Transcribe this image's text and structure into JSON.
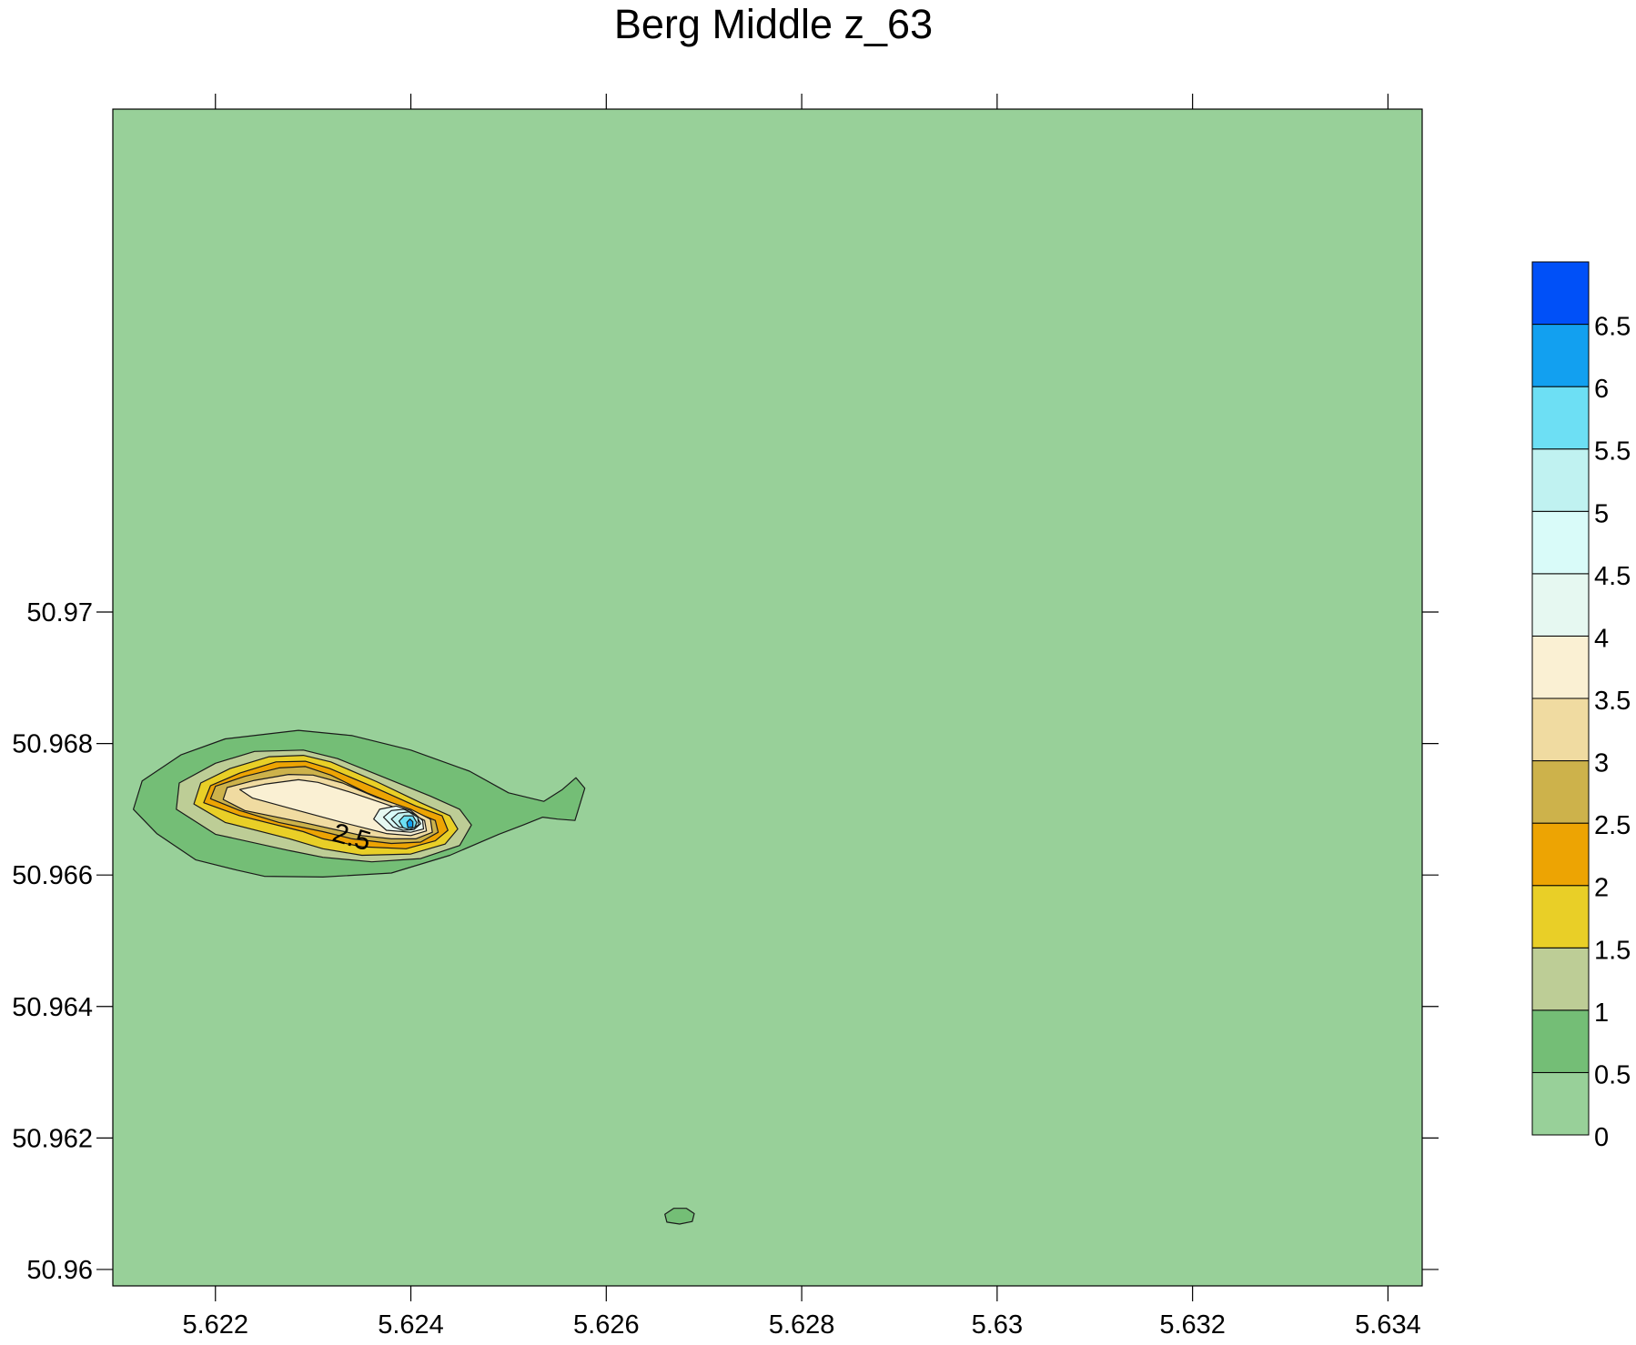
{
  "chart_data": {
    "type": "contour",
    "title": "Berg Middle z_63",
    "xlabel": "",
    "ylabel": "",
    "xlim": [
      5.62095,
      5.63435
    ],
    "ylim": [
      50.95975,
      50.97765
    ],
    "x_ticks": [
      5.622,
      5.624,
      5.626,
      5.628,
      5.63,
      5.632,
      5.634
    ],
    "x_tick_labels": [
      "5.622",
      "5.624",
      "5.626",
      "5.628",
      "5.63",
      "5.632",
      "5.634"
    ],
    "y_ticks": [
      50.96,
      50.962,
      50.964,
      50.966,
      50.968,
      50.97
    ],
    "y_tick_labels": [
      "50.96",
      "50.962",
      "50.964",
      "50.966",
      "50.968",
      "50.97"
    ],
    "grid": false,
    "background_level_color": "#98d099",
    "contour_label": {
      "text": "2.5",
      "x": 5.62339,
      "y": 50.96655
    },
    "levels": [
      0,
      0.5,
      1,
      1.5,
      2,
      2.5,
      3,
      3.5,
      4,
      4.5,
      5,
      5.5,
      6,
      6.5,
      7
    ],
    "colorbar": {
      "placement": "right",
      "labels": [
        "0",
        "0.5",
        "1",
        "1.5",
        "2",
        "2.5",
        "3",
        "3.5",
        "4",
        "4.5",
        "5",
        "5.5",
        "6",
        "6.5"
      ],
      "colors": [
        "#98d099",
        "#74be76",
        "#bdcd96",
        "#e9cf27",
        "#eda403",
        "#cdb24b",
        "#f0dba1",
        "#faf0d3",
        "#e6f8f1",
        "#d9fbf9",
        "#c0f2f1",
        "#6ddff4",
        "#12a0f0",
        "#0050f8"
      ]
    },
    "regions": [
      {
        "level": [
          0.5,
          1
        ],
        "color": "#74be76",
        "polygon": [
          [
            5.62223,
            50.96607
          ],
          [
            5.6218,
            50.96623
          ],
          [
            5.6214,
            50.96663
          ],
          [
            5.62116,
            50.967
          ],
          [
            5.62125,
            50.96743
          ],
          [
            5.62165,
            50.96783
          ],
          [
            5.6221,
            50.96807
          ],
          [
            5.62285,
            50.9682
          ],
          [
            5.6234,
            50.96812
          ],
          [
            5.624,
            50.9679
          ],
          [
            5.6246,
            50.96758
          ],
          [
            5.625,
            50.96725
          ],
          [
            5.62536,
            50.96712
          ],
          [
            5.62555,
            50.9673
          ],
          [
            5.62569,
            50.96748
          ],
          [
            5.62578,
            50.96732
          ],
          [
            5.62568,
            50.96683
          ],
          [
            5.6255,
            50.96685
          ],
          [
            5.62535,
            50.96688
          ],
          [
            5.62515,
            50.96676
          ],
          [
            5.6249,
            50.96662
          ],
          [
            5.6244,
            50.9663
          ],
          [
            5.6238,
            50.96603
          ],
          [
            5.6231,
            50.96597
          ],
          [
            5.6225,
            50.96598
          ]
        ]
      },
      {
        "level": [
          1,
          1.5
        ],
        "color": "#bdcd96",
        "polygon": [
          [
            5.62276,
            50.96637
          ],
          [
            5.622,
            50.96662
          ],
          [
            5.6216,
            50.967
          ],
          [
            5.62163,
            50.9674
          ],
          [
            5.622,
            50.9677
          ],
          [
            5.6224,
            50.96788
          ],
          [
            5.6229,
            50.9679
          ],
          [
            5.62325,
            50.96777
          ],
          [
            5.6237,
            50.9675
          ],
          [
            5.6242,
            50.9672
          ],
          [
            5.6245,
            50.967
          ],
          [
            5.62462,
            50.96676
          ],
          [
            5.6245,
            50.96645
          ],
          [
            5.6241,
            50.96625
          ],
          [
            5.6236,
            50.9662
          ],
          [
            5.6231,
            50.96627
          ]
        ]
      },
      {
        "level": [
          1.5,
          2
        ],
        "color": "#e9cf27",
        "polygon": [
          [
            5.62276,
            50.96655
          ],
          [
            5.6221,
            50.9668
          ],
          [
            5.62178,
            50.96708
          ],
          [
            5.62185,
            50.9674
          ],
          [
            5.62215,
            50.96762
          ],
          [
            5.62255,
            50.9678
          ],
          [
            5.6229,
            50.96782
          ],
          [
            5.62318,
            50.96772
          ],
          [
            5.62365,
            50.96742
          ],
          [
            5.6241,
            50.9671
          ],
          [
            5.6244,
            50.9669
          ],
          [
            5.62448,
            50.9667
          ],
          [
            5.62435,
            50.96647
          ],
          [
            5.624,
            50.96632
          ],
          [
            5.6235,
            50.9663
          ],
          [
            5.6231,
            50.9664
          ]
        ]
      },
      {
        "level": [
          2,
          2.5
        ],
        "color": "#eda403",
        "polygon": [
          [
            5.6229,
            50.96666
          ],
          [
            5.62225,
            50.9669
          ],
          [
            5.62188,
            50.9671
          ],
          [
            5.62195,
            50.96736
          ],
          [
            5.62225,
            50.96755
          ],
          [
            5.62262,
            50.96772
          ],
          [
            5.62292,
            50.96773
          ],
          [
            5.62317,
            50.96762
          ],
          [
            5.6236,
            50.96735
          ],
          [
            5.62405,
            50.96705
          ],
          [
            5.62432,
            50.9669
          ],
          [
            5.62438,
            50.96668
          ],
          [
            5.62425,
            50.96652
          ],
          [
            5.62395,
            50.9664
          ],
          [
            5.6235,
            50.96643
          ],
          [
            5.6231,
            50.96655
          ]
        ]
      },
      {
        "level": [
          2.5,
          3
        ],
        "color": "#cdb24b",
        "polygon": [
          [
            5.6231,
            50.96666
          ],
          [
            5.62265,
            50.9668
          ],
          [
            5.62225,
            50.96698
          ],
          [
            5.62195,
            50.96716
          ],
          [
            5.622,
            50.96735
          ],
          [
            5.6223,
            50.9675
          ],
          [
            5.62265,
            50.96763
          ],
          [
            5.62292,
            50.96765
          ],
          [
            5.62318,
            50.96752
          ],
          [
            5.62355,
            50.96725
          ],
          [
            5.624,
            50.96698
          ],
          [
            5.62425,
            50.96683
          ],
          [
            5.62428,
            50.96665
          ],
          [
            5.6241,
            50.9665
          ],
          [
            5.6238,
            50.96648
          ],
          [
            5.6234,
            50.96655
          ]
        ]
      },
      {
        "level": [
          3,
          3.5
        ],
        "color": "#f0dba1",
        "polygon": [
          [
            5.6235,
            50.9666
          ],
          [
            5.6229,
            50.9668
          ],
          [
            5.6223,
            50.96698
          ],
          [
            5.62208,
            50.96715
          ],
          [
            5.62212,
            50.96733
          ],
          [
            5.6224,
            50.96744
          ],
          [
            5.62275,
            50.96753
          ],
          [
            5.623,
            50.96752
          ],
          [
            5.6233,
            50.9674
          ],
          [
            5.62365,
            50.96718
          ],
          [
            5.624,
            50.967
          ],
          [
            5.6242,
            50.96685
          ],
          [
            5.62422,
            50.96665
          ],
          [
            5.62405,
            50.96655
          ],
          [
            5.6238,
            50.96655
          ]
        ]
      },
      {
        "level": [
          3.5,
          4
        ],
        "color": "#faf0d3",
        "polygon": [
          [
            5.62375,
            50.96663
          ],
          [
            5.6233,
            50.9668
          ],
          [
            5.6228,
            50.967
          ],
          [
            5.62238,
            50.96717
          ],
          [
            5.62225,
            50.9673
          ],
          [
            5.6225,
            50.96738
          ],
          [
            5.62285,
            50.96745
          ],
          [
            5.62305,
            50.96741
          ],
          [
            5.6234,
            50.96725
          ],
          [
            5.6237,
            50.9671
          ],
          [
            5.62395,
            50.96697
          ],
          [
            5.62414,
            50.96683
          ],
          [
            5.62416,
            50.96667
          ],
          [
            5.624,
            50.9666
          ]
        ]
      },
      {
        "level": [
          4,
          4.5
        ],
        "color": "#e6f8f1",
        "polygon": [
          [
            5.62375,
            50.96668
          ],
          [
            5.62362,
            50.96685
          ],
          [
            5.62368,
            50.967
          ],
          [
            5.62385,
            50.96705
          ],
          [
            5.624,
            50.96698
          ],
          [
            5.62412,
            50.96683
          ],
          [
            5.62413,
            50.9667
          ],
          [
            5.624,
            50.96665
          ]
        ]
      },
      {
        "level": [
          4.5,
          5
        ],
        "color": "#d9fbf9",
        "polygon": [
          [
            5.62382,
            50.96673
          ],
          [
            5.62372,
            50.96688
          ],
          [
            5.6238,
            50.96698
          ],
          [
            5.62393,
            50.967
          ],
          [
            5.62405,
            50.96692
          ],
          [
            5.6241,
            50.96678
          ],
          [
            5.62403,
            50.96669
          ],
          [
            5.62392,
            50.96668
          ]
        ]
      },
      {
        "level": [
          5,
          5.5
        ],
        "color": "#c0f2f1",
        "polygon": [
          [
            5.62388,
            50.96673
          ],
          [
            5.6238,
            50.96685
          ],
          [
            5.62387,
            50.96694
          ],
          [
            5.62398,
            50.96696
          ],
          [
            5.62407,
            50.96688
          ],
          [
            5.62408,
            50.96676
          ],
          [
            5.624,
            50.9667
          ]
        ]
      },
      {
        "level": [
          5.5,
          6
        ],
        "color": "#6ddff4",
        "polygon": [
          [
            5.62392,
            50.96672
          ],
          [
            5.62388,
            50.96682
          ],
          [
            5.62393,
            50.9669
          ],
          [
            5.62402,
            50.9669
          ],
          [
            5.62406,
            50.9668
          ],
          [
            5.62404,
            50.96672
          ],
          [
            5.62398,
            50.96669
          ]
        ]
      },
      {
        "level": [
          6,
          6.5
        ],
        "color": "#12a0f0",
        "polygon": [
          [
            5.62397,
            50.96672
          ],
          [
            5.62396,
            50.9668
          ],
          [
            5.62399,
            50.96685
          ],
          [
            5.62402,
            50.96681
          ],
          [
            5.62402,
            50.96673
          ]
        ]
      },
      {
        "level": [
          0.5,
          1
        ],
        "color": "#74be76",
        "polygon": [
          [
            5.62669,
            50.96093
          ],
          [
            5.6266,
            50.96084
          ],
          [
            5.62662,
            50.96072
          ],
          [
            5.62675,
            50.96069
          ],
          [
            5.62688,
            50.96073
          ],
          [
            5.6269,
            50.96085
          ],
          [
            5.62682,
            50.96093
          ]
        ]
      }
    ]
  }
}
